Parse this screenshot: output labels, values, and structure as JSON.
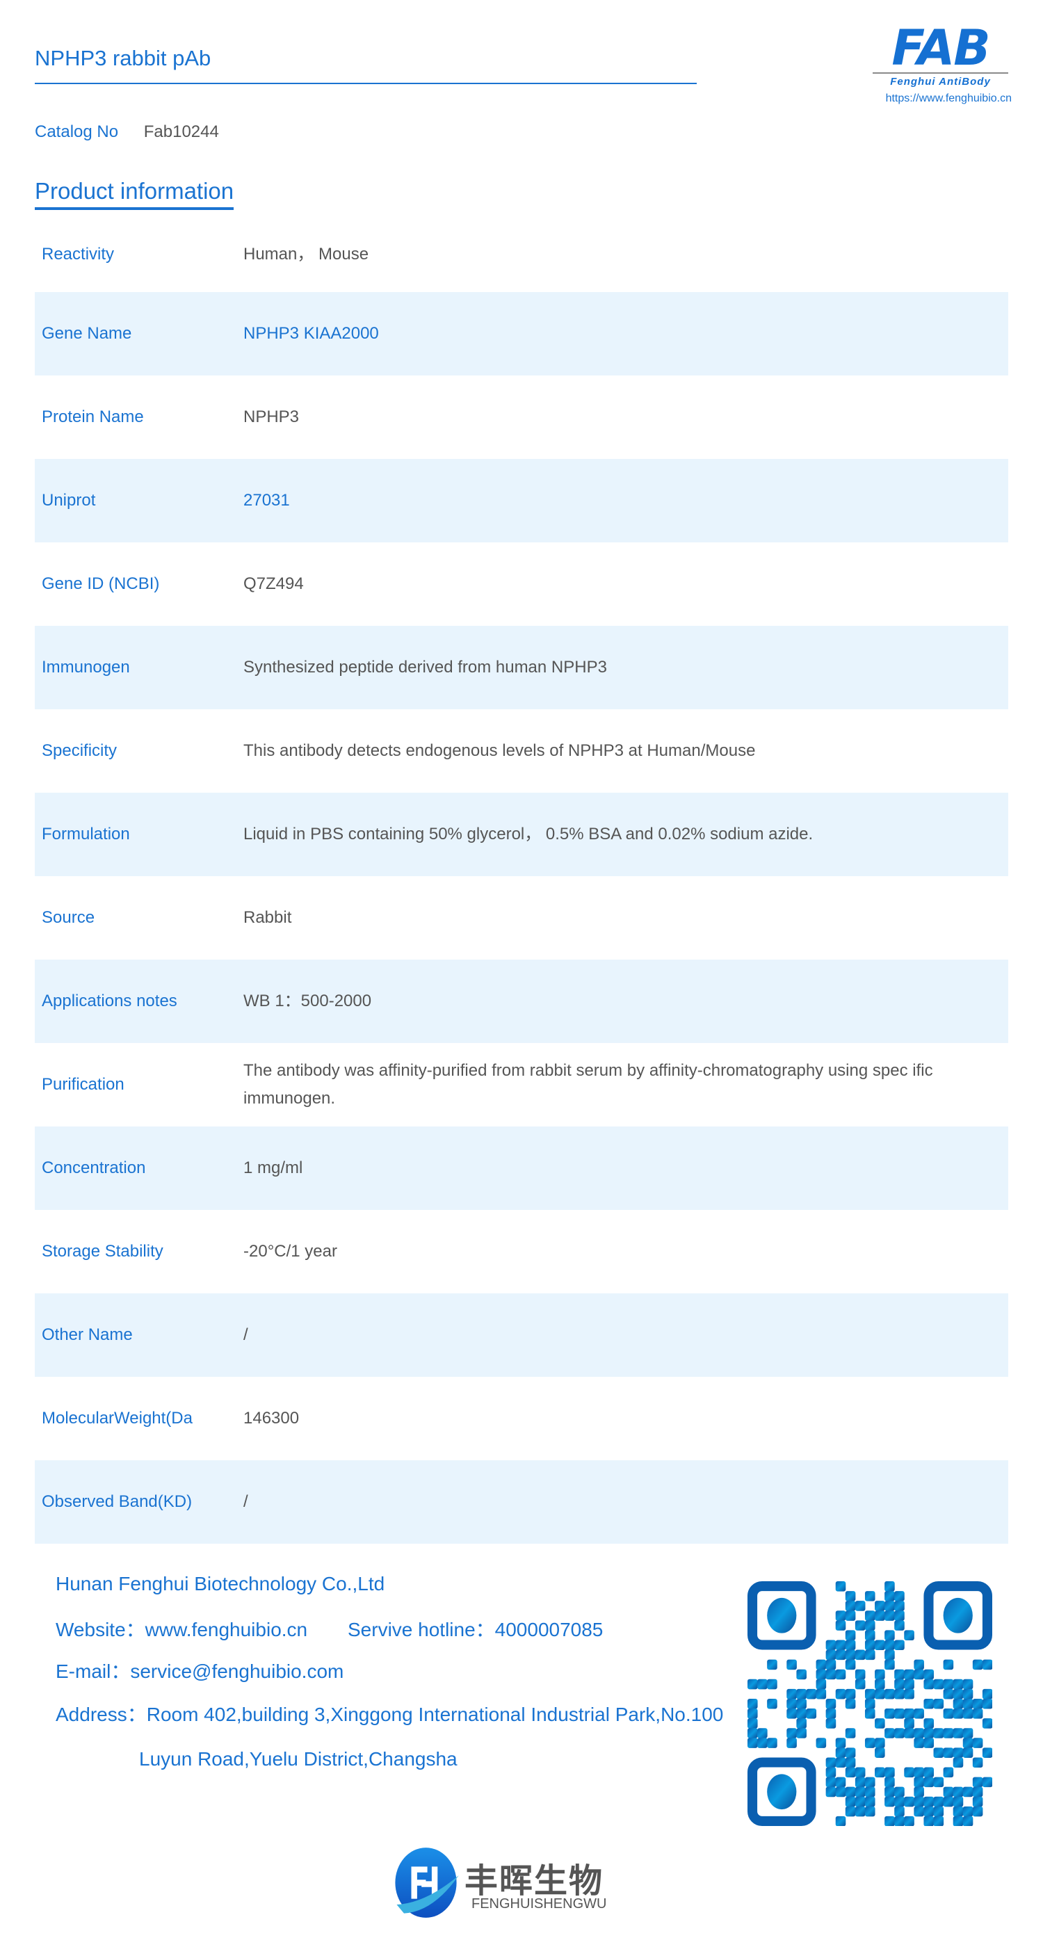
{
  "header": {
    "title": "NPHP3 rabbit pAb",
    "logo_text": "FAB",
    "logo_subtitle": "Fenghui AntiBody",
    "url": "https://www.fenghuibio.cn"
  },
  "catalog": {
    "label": "Catalog No",
    "value": "Fab10244"
  },
  "section_title": "Product information",
  "rows": [
    {
      "label": "Reactivity",
      "value": "Human， Mouse"
    },
    {
      "label": "Gene Name",
      "value": "NPHP3 KIAA2000",
      "highlight": true
    },
    {
      "label": "Protein Name",
      "value": "NPHP3"
    },
    {
      "label": "Uniprot",
      "value": "27031",
      "highlight": true
    },
    {
      "label": "Gene ID (NCBI)",
      "value": "Q7Z494"
    },
    {
      "label": "Immunogen",
      "value": "Synthesized peptide derived from human NPHP3"
    },
    {
      "label": "Specificity",
      "value": "This antibody detects endogenous levels of NPHP3 at Human/Mouse"
    },
    {
      "label": "Formulation",
      "value": "Liquid in PBS containing 50% glycerol， 0.5% BSA and 0.02% sodium azide."
    },
    {
      "label": "Source",
      "value": "Rabbit"
    },
    {
      "label": "Applications notes",
      "value": "WB 1：500-2000"
    },
    {
      "label": "Purification",
      "value": "The antibody was affinity-purified from rabbit serum by affinity-chromatography using spec ific immunogen."
    },
    {
      "label": "Concentration",
      "value": "1 mg/ml"
    },
    {
      "label": "Storage Stability",
      "value": "-20°C/1 year"
    },
    {
      "label": "Other Name",
      "value": "/"
    },
    {
      "label": "MolecularWeight(Da",
      "value": "146300"
    },
    {
      "label": "Observed Band(KD)",
      "value": "/"
    }
  ],
  "footer": {
    "company": "Hunan Fenghui Biotechnology Co.,Ltd",
    "website": "Website：www.fenghuibio.cn",
    "hotline": "Servive hotline：4000007085",
    "email": "E-mail：service@fenghuibio.com",
    "address1": "Address：Room 402,building 3,Xinggong International Industrial Park,No.100",
    "address2": "Luyun Road,Yuelu District,Changsha",
    "brand_cn": "丰晖生物",
    "brand_en": "FENGHUISHENGWU"
  },
  "colors": {
    "accent": "#1a73d1",
    "row_alt": "#e8f4fd",
    "text": "#555555"
  },
  "icons": {
    "qr": "qr-code-icon",
    "brand_logo": "fenghui-logo-icon"
  }
}
